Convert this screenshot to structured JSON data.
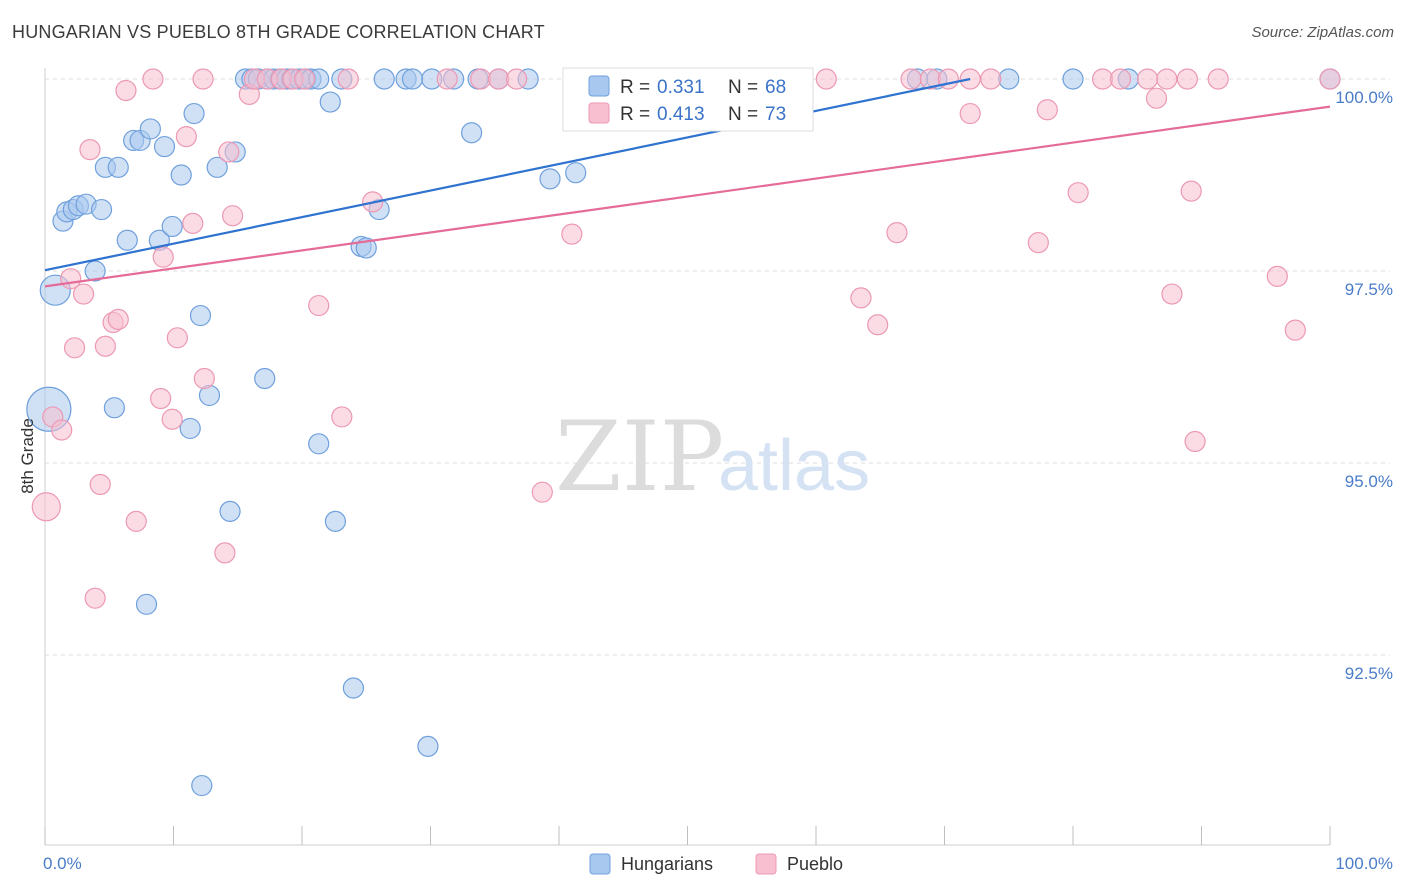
{
  "title": "HUNGARIAN VS PUEBLO 8TH GRADE CORRELATION CHART",
  "source": "Source: ZipAtlas.com",
  "watermark": {
    "zip": "ZIP",
    "atlas": "atlas"
  },
  "colors": {
    "hungarians_fill": "#a9c8ef",
    "hungarians_stroke": "#6fa0dc",
    "hungarians_line": "#2f73d0",
    "pueblo_fill": "#f7bfd0",
    "pueblo_stroke": "#ec98b3",
    "pueblo_line": "#e56b98",
    "grid": "#dcdcdc",
    "tick_text": "#4a7cc9"
  },
  "legend": {
    "rows": [
      {
        "r_label": "R = ",
        "r_value": "0.331",
        "n_label": "N = ",
        "n_value": "68"
      },
      {
        "r_label": "R = ",
        "r_value": "0.413",
        "n_label": "N = ",
        "n_value": "73"
      }
    ]
  },
  "bottom_legend": {
    "items": [
      "Hungarians",
      "Pueblo"
    ]
  },
  "chart_data": {
    "type": "scatter",
    "title": "HUNGARIAN VS PUEBLO 8TH GRADE CORRELATION CHART",
    "xlabel": "",
    "ylabel": "8th Grade",
    "xlim": [
      0,
      100
    ],
    "ylim": [
      90.0,
      100.2
    ],
    "x_tick_labels": [
      "0.0%",
      "100.0%"
    ],
    "y_ticks": [
      100.0,
      97.5,
      95.0,
      92.5
    ],
    "y_tick_labels": [
      "100.0%",
      "97.5%",
      "95.0%",
      "92.5%"
    ],
    "grid": true,
    "series": [
      {
        "name": "Hungarians",
        "R": 0.331,
        "N": 68,
        "trend": {
          "x": [
            0,
            72
          ],
          "y": [
            97.51,
            100.0
          ]
        },
        "points": [
          [
            0.3,
            95.7,
            22
          ],
          [
            0.8,
            97.25,
            15
          ],
          [
            1.4,
            98.15,
            10
          ],
          [
            1.7,
            98.27,
            10
          ],
          [
            2.2,
            98.3,
            10
          ],
          [
            2.6,
            98.35,
            10
          ],
          [
            3.2,
            98.37,
            10
          ],
          [
            4.4,
            98.3,
            10
          ],
          [
            3.9,
            97.5,
            10
          ],
          [
            4.7,
            98.85,
            10
          ],
          [
            5.7,
            98.85,
            10
          ],
          [
            6.4,
            97.9,
            10
          ],
          [
            5.4,
            95.72,
            10
          ],
          [
            6.9,
            99.2,
            10
          ],
          [
            7.4,
            99.2,
            10
          ],
          [
            8.2,
            99.35,
            10
          ],
          [
            8.9,
            97.9,
            10
          ],
          [
            9.3,
            99.12,
            10
          ],
          [
            9.9,
            98.08,
            10
          ],
          [
            10.6,
            98.75,
            10
          ],
          [
            11.3,
            95.45,
            10
          ],
          [
            11.6,
            99.55,
            10
          ],
          [
            12.1,
            96.92,
            10
          ],
          [
            12.8,
            95.88,
            10
          ],
          [
            13.4,
            98.85,
            10
          ],
          [
            14.4,
            94.37,
            10
          ],
          [
            14.8,
            99.05,
            10
          ],
          [
            15.6,
            100.0,
            10
          ],
          [
            16.1,
            100.0,
            10
          ],
          [
            16.6,
            100.0,
            10
          ],
          [
            17.3,
            100.0,
            10
          ],
          [
            17.8,
            100.0,
            10
          ],
          [
            18.3,
            100.0,
            10
          ],
          [
            18.8,
            100.0,
            10
          ],
          [
            19.2,
            100.0,
            10
          ],
          [
            19.8,
            100.0,
            10
          ],
          [
            20.3,
            100.0,
            10
          ],
          [
            20.7,
            100.0,
            10
          ],
          [
            21.3,
            100.0,
            10
          ],
          [
            17.1,
            96.1,
            10
          ],
          [
            21.3,
            95.25,
            10
          ],
          [
            22.2,
            99.7,
            10
          ],
          [
            22.6,
            94.24,
            10
          ],
          [
            23.1,
            100.0,
            10
          ],
          [
            24.0,
            92.07,
            10
          ],
          [
            24.6,
            97.82,
            10
          ],
          [
            25.0,
            97.8,
            10
          ],
          [
            26.0,
            98.3,
            10
          ],
          [
            26.4,
            100.0,
            10
          ],
          [
            28.1,
            100.0,
            10
          ],
          [
            28.6,
            100.0,
            10
          ],
          [
            30.1,
            100.0,
            10
          ],
          [
            31.8,
            100.0,
            10
          ],
          [
            33.2,
            99.3,
            10
          ],
          [
            33.7,
            100.0,
            10
          ],
          [
            35.3,
            100.0,
            10
          ],
          [
            37.6,
            100.0,
            10
          ],
          [
            39.3,
            98.7,
            10
          ],
          [
            41.3,
            98.78,
            10
          ],
          [
            29.8,
            91.31,
            10
          ],
          [
            7.9,
            93.16,
            10
          ],
          [
            12.2,
            90.8,
            10
          ],
          [
            67.9,
            100.0,
            10
          ],
          [
            69.4,
            100.0,
            10
          ],
          [
            75.0,
            100.0,
            10
          ],
          [
            80.0,
            100.0,
            10
          ],
          [
            84.3,
            100.0,
            10
          ],
          [
            100.0,
            100.0,
            10
          ]
        ]
      },
      {
        "name": "Pueblo",
        "R": 0.413,
        "N": 73,
        "trend": {
          "x": [
            0,
            100
          ],
          "y": [
            97.3,
            99.64
          ]
        },
        "points": [
          [
            0.1,
            94.43,
            14
          ],
          [
            0.6,
            95.6,
            10
          ],
          [
            1.3,
            95.43,
            10
          ],
          [
            2.0,
            97.4,
            10
          ],
          [
            2.3,
            96.5,
            10
          ],
          [
            3.0,
            97.2,
            10
          ],
          [
            3.5,
            99.08,
            10
          ],
          [
            3.9,
            93.24,
            10
          ],
          [
            4.3,
            94.72,
            10
          ],
          [
            4.7,
            96.52,
            10
          ],
          [
            5.3,
            96.83,
            10
          ],
          [
            5.7,
            96.87,
            10
          ],
          [
            6.3,
            99.85,
            10
          ],
          [
            7.1,
            94.24,
            10
          ],
          [
            8.4,
            100.0,
            10
          ],
          [
            9.0,
            95.84,
            10
          ],
          [
            9.2,
            97.68,
            10
          ],
          [
            9.9,
            95.57,
            10
          ],
          [
            10.3,
            96.63,
            10
          ],
          [
            11.0,
            99.25,
            10
          ],
          [
            11.5,
            98.12,
            10
          ],
          [
            12.3,
            100.0,
            10
          ],
          [
            12.4,
            96.1,
            10
          ],
          [
            14.0,
            93.83,
            10
          ],
          [
            14.3,
            99.05,
            10
          ],
          [
            14.6,
            98.22,
            10
          ],
          [
            15.9,
            99.8,
            10
          ],
          [
            16.3,
            100.0,
            10
          ],
          [
            17.3,
            100.0,
            10
          ],
          [
            18.4,
            100.0,
            10
          ],
          [
            19.3,
            100.0,
            10
          ],
          [
            20.2,
            100.0,
            10
          ],
          [
            21.3,
            97.05,
            10
          ],
          [
            23.1,
            95.6,
            10
          ],
          [
            23.6,
            100.0,
            10
          ],
          [
            25.5,
            98.4,
            10
          ],
          [
            31.3,
            100.0,
            10
          ],
          [
            33.9,
            100.0,
            10
          ],
          [
            35.3,
            100.0,
            10
          ],
          [
            36.7,
            100.0,
            10
          ],
          [
            38.7,
            94.62,
            10
          ],
          [
            41.0,
            97.98,
            10
          ],
          [
            44.4,
            100.0,
            10
          ],
          [
            47.0,
            100.0,
            10
          ],
          [
            51.0,
            100.0,
            10
          ],
          [
            53.6,
            100.0,
            10
          ],
          [
            55.8,
            100.0,
            10
          ],
          [
            60.8,
            100.0,
            10
          ],
          [
            63.5,
            97.15,
            10
          ],
          [
            64.8,
            96.8,
            10
          ],
          [
            66.3,
            98.0,
            10
          ],
          [
            67.4,
            100.0,
            10
          ],
          [
            68.9,
            100.0,
            10
          ],
          [
            70.3,
            100.0,
            10
          ],
          [
            72.0,
            100.0,
            10
          ],
          [
            72.0,
            99.55,
            10
          ],
          [
            73.6,
            100.0,
            10
          ],
          [
            77.3,
            97.87,
            10
          ],
          [
            78.0,
            99.6,
            10
          ],
          [
            80.4,
            98.52,
            10
          ],
          [
            82.3,
            100.0,
            10
          ],
          [
            83.7,
            100.0,
            10
          ],
          [
            85.8,
            100.0,
            10
          ],
          [
            86.5,
            99.75,
            10
          ],
          [
            87.3,
            100.0,
            10
          ],
          [
            87.7,
            97.2,
            10
          ],
          [
            88.9,
            100.0,
            10
          ],
          [
            89.2,
            98.54,
            10
          ],
          [
            89.5,
            95.28,
            10
          ],
          [
            91.3,
            100.0,
            10
          ],
          [
            95.9,
            97.43,
            10
          ],
          [
            97.3,
            96.73,
            10
          ],
          [
            100.0,
            100.0,
            10
          ]
        ]
      }
    ]
  }
}
